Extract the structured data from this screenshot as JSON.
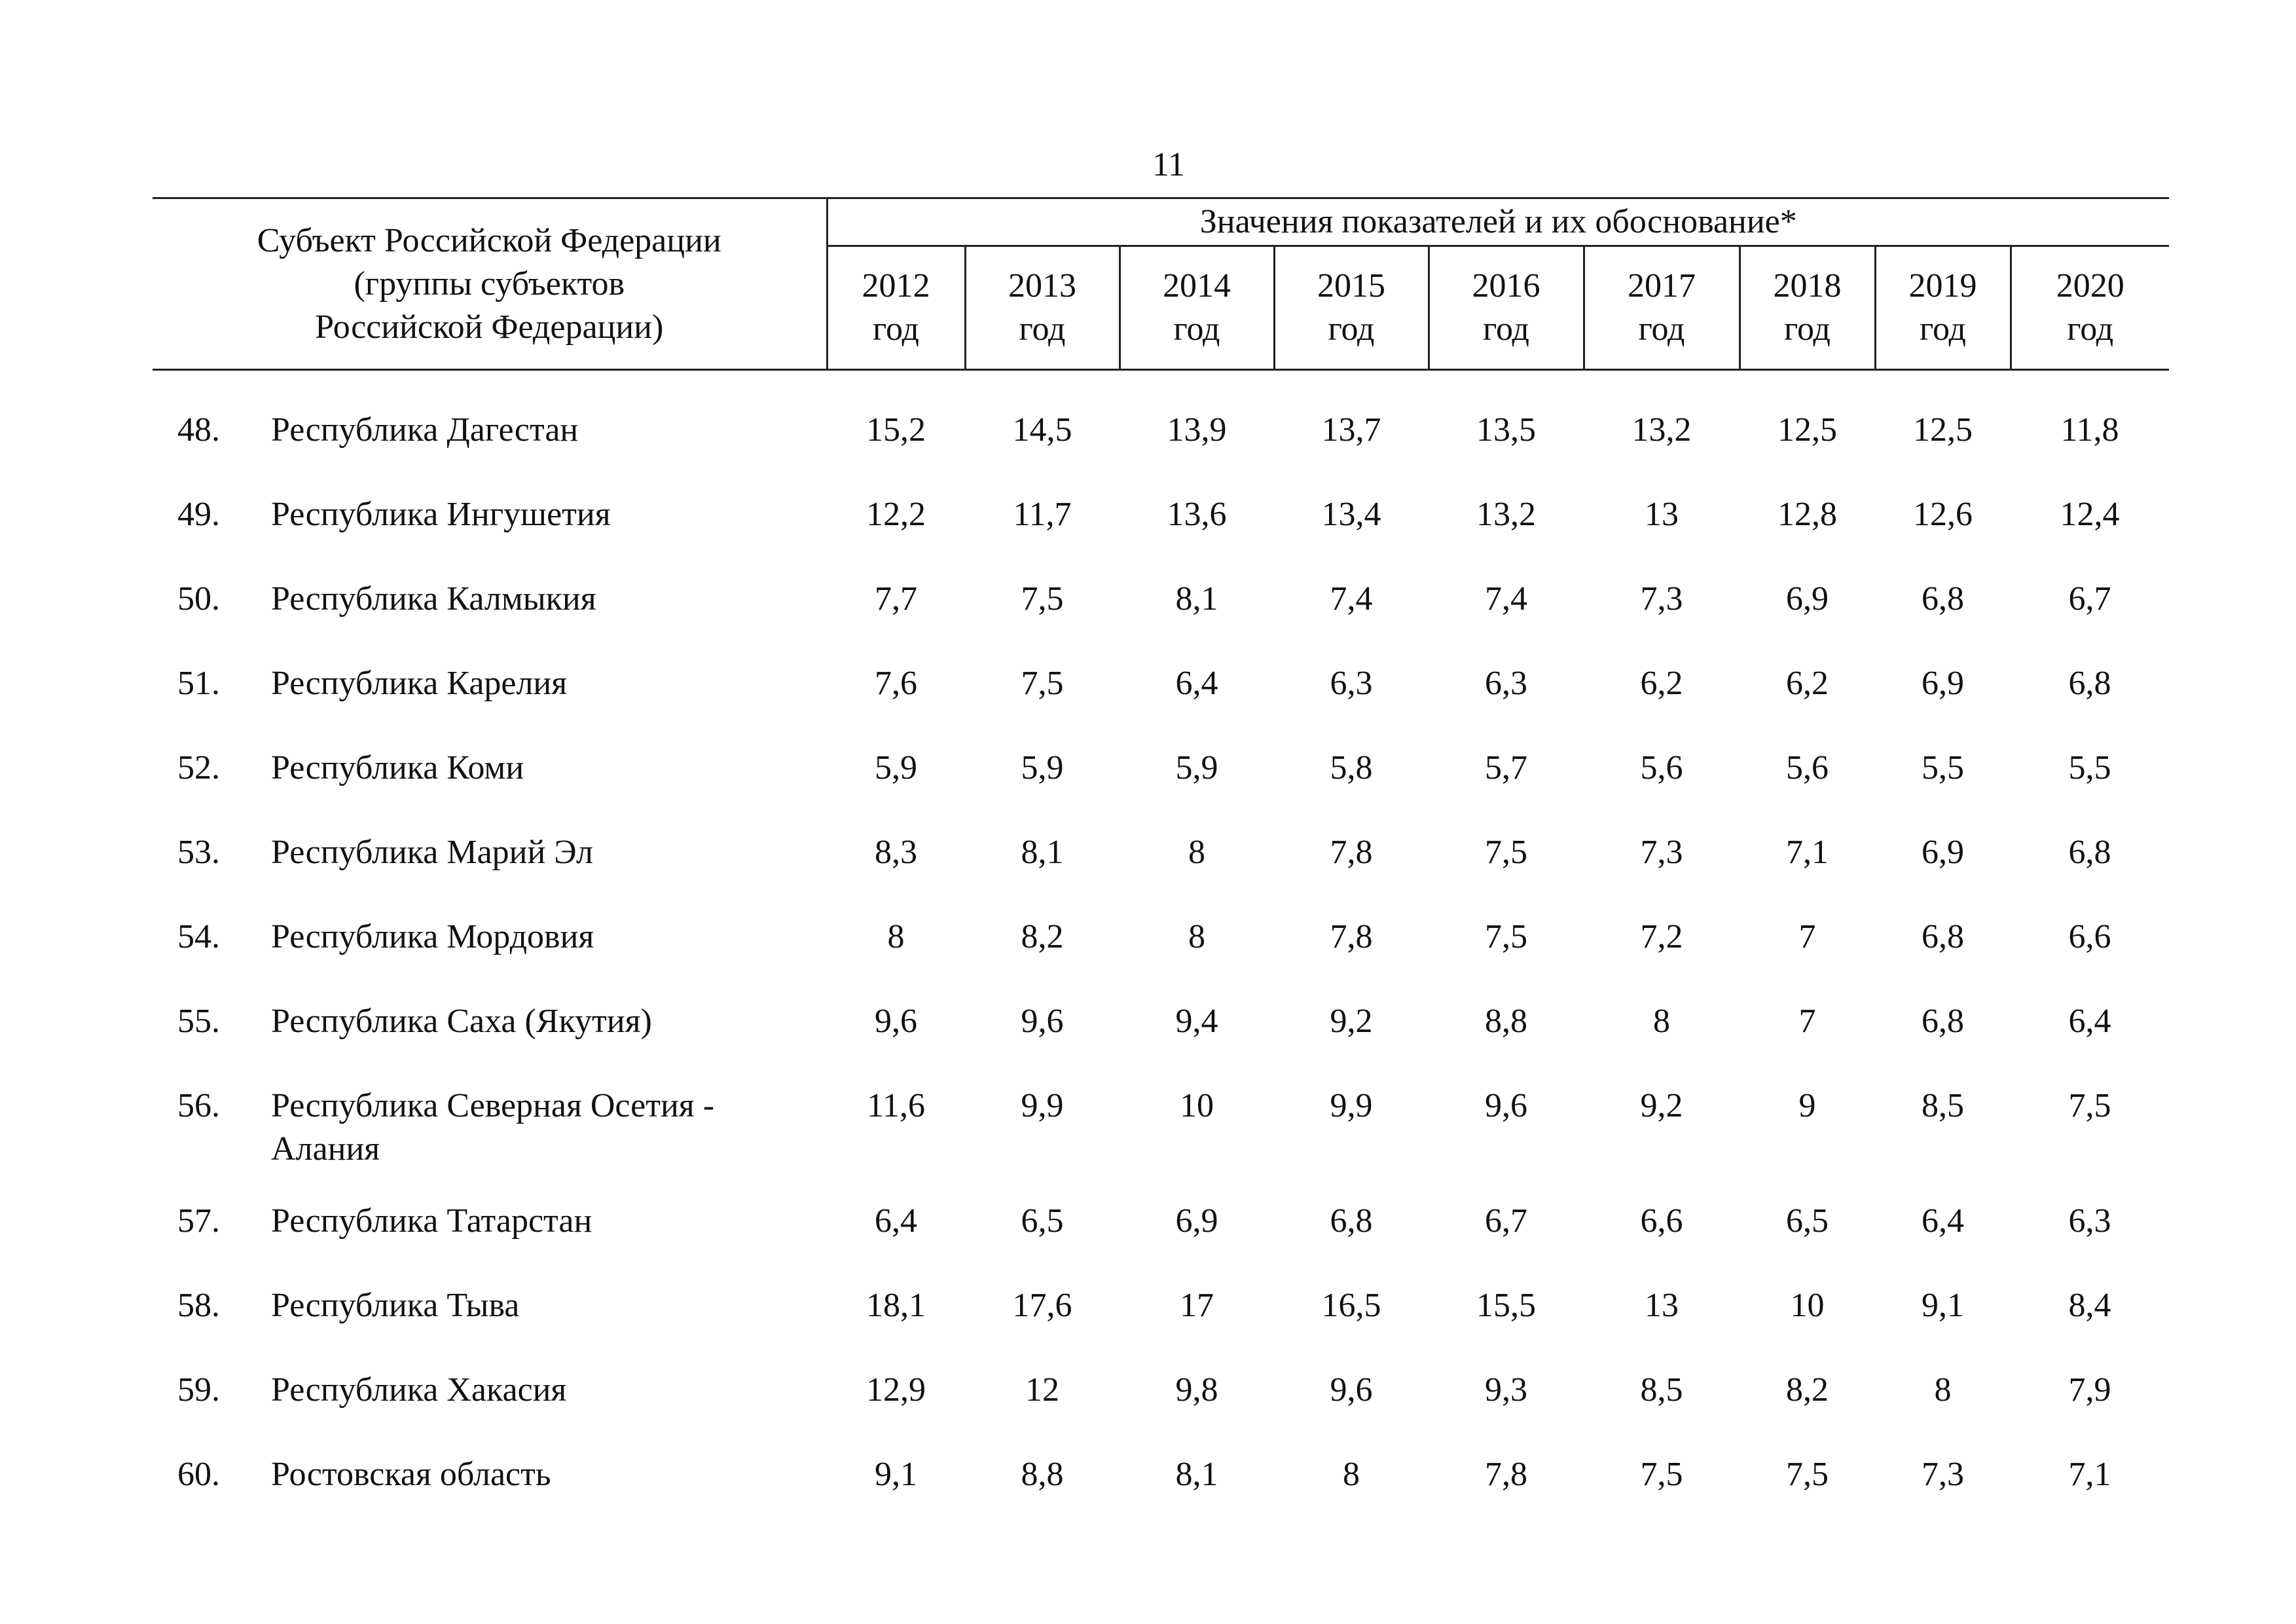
{
  "page_number": "11",
  "table": {
    "subject_header_lines": [
      "Субъект Российской Федерации",
      "(группы субъектов",
      "Российской Федерации)"
    ],
    "group_header": "Значения показателей и их обоснование*",
    "years": [
      {
        "year": "2012",
        "unit": "год"
      },
      {
        "year": "2013",
        "unit": "год"
      },
      {
        "year": "2014",
        "unit": "год"
      },
      {
        "year": "2015",
        "unit": "год"
      },
      {
        "year": "2016",
        "unit": "год"
      },
      {
        "year": "2017",
        "unit": "год"
      },
      {
        "year": "2018",
        "unit": "год"
      },
      {
        "year": "2019",
        "unit": "год"
      },
      {
        "year": "2020",
        "unit": "год"
      }
    ],
    "rows": [
      {
        "num": "48.",
        "name": "Республика Дагестан",
        "values": [
          "15,2",
          "14,5",
          "13,9",
          "13,7",
          "13,5",
          "13,2",
          "12,5",
          "12,5",
          "11,8"
        ]
      },
      {
        "num": "49.",
        "name": "Республика Ингушетия",
        "values": [
          "12,2",
          "11,7",
          "13,6",
          "13,4",
          "13,2",
          "13",
          "12,8",
          "12,6",
          "12,4"
        ]
      },
      {
        "num": "50.",
        "name": "Республика Калмыкия",
        "values": [
          "7,7",
          "7,5",
          "8,1",
          "7,4",
          "7,4",
          "7,3",
          "6,9",
          "6,8",
          "6,7"
        ]
      },
      {
        "num": "51.",
        "name": "Республика Карелия",
        "values": [
          "7,6",
          "7,5",
          "6,4",
          "6,3",
          "6,3",
          "6,2",
          "6,2",
          "6,9",
          "6,8"
        ]
      },
      {
        "num": "52.",
        "name": "Республика Коми",
        "values": [
          "5,9",
          "5,9",
          "5,9",
          "5,8",
          "5,7",
          "5,6",
          "5,6",
          "5,5",
          "5,5"
        ]
      },
      {
        "num": "53.",
        "name": "Республика Марий Эл",
        "values": [
          "8,3",
          "8,1",
          "8",
          "7,8",
          "7,5",
          "7,3",
          "7,1",
          "6,9",
          "6,8"
        ]
      },
      {
        "num": "54.",
        "name": "Республика Мордовия",
        "values": [
          "8",
          "8,2",
          "8",
          "7,8",
          "7,5",
          "7,2",
          "7",
          "6,8",
          "6,6"
        ]
      },
      {
        "num": "55.",
        "name": "Республика Саха (Якутия)",
        "values": [
          "9,6",
          "9,6",
          "9,4",
          "9,2",
          "8,8",
          "8",
          "7",
          "6,8",
          "6,4"
        ]
      },
      {
        "num": "56.",
        "name": "Республика Северная Осетия - Алания",
        "values": [
          "11,6",
          "9,9",
          "10",
          "9,9",
          "9,6",
          "9,2",
          "9",
          "8,5",
          "7,5"
        ]
      },
      {
        "num": "57.",
        "name": "Республика Татарстан",
        "values": [
          "6,4",
          "6,5",
          "6,9",
          "6,8",
          "6,7",
          "6,6",
          "6,5",
          "6,4",
          "6,3"
        ]
      },
      {
        "num": "58.",
        "name": "Республика Тыва",
        "values": [
          "18,1",
          "17,6",
          "17",
          "16,5",
          "15,5",
          "13",
          "10",
          "9,1",
          "8,4"
        ]
      },
      {
        "num": "59.",
        "name": "Республика Хакасия",
        "values": [
          "12,9",
          "12",
          "9,8",
          "9,6",
          "9,3",
          "8,5",
          "8,2",
          "8",
          "7,9"
        ]
      },
      {
        "num": "60.",
        "name": "Ростовская область",
        "values": [
          "9,1",
          "8,8",
          "8,1",
          "8",
          "7,8",
          "7,5",
          "7,5",
          "7,3",
          "7,1"
        ]
      }
    ]
  }
}
